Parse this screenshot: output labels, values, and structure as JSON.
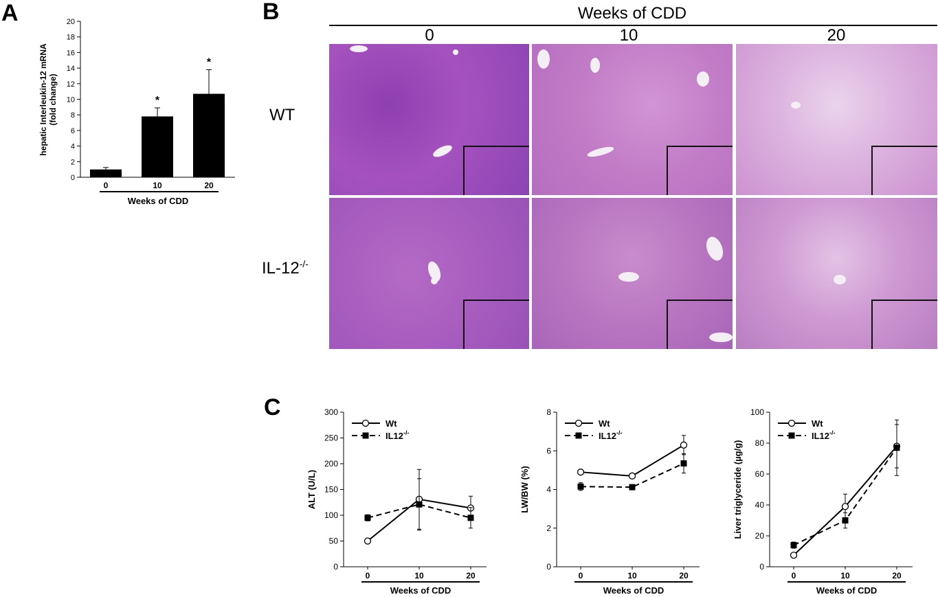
{
  "panels": {
    "a": "A",
    "b": "B",
    "c": "C"
  },
  "histology": {
    "title": "Weeks of CDD",
    "columns": [
      "0",
      "10",
      "20"
    ],
    "rows": [
      {
        "base": "WT",
        "sup": ""
      },
      {
        "base": "IL-12",
        "sup": "-/-"
      }
    ]
  },
  "colors": {
    "bar": "#000000",
    "tissue_base": "#9b4fb8",
    "tissue_pink": "#c783c8",
    "tissue_vessel": "#f3eef6"
  },
  "chart_data": [
    {
      "id": "A",
      "type": "bar",
      "categories": [
        "0",
        "10",
        "20"
      ],
      "values": [
        1.0,
        7.8,
        10.7
      ],
      "errors": [
        0.25,
        1.1,
        3.1
      ],
      "significance": [
        "",
        "*",
        "*"
      ],
      "xlabel": "Weeks of CDD",
      "ylabel_lines": [
        "hepatic Interleukin-12 mRNA",
        "(fold change)"
      ],
      "ylim": [
        0,
        20
      ],
      "yticks": [
        "0",
        "2",
        "4",
        "6",
        "8",
        "10",
        "12",
        "14",
        "16",
        "18",
        "20"
      ],
      "grid": false
    },
    {
      "id": "C1",
      "type": "line",
      "x": [
        "0",
        "10",
        "20"
      ],
      "xlabel": "Weeks of CDD",
      "ylabel": "ALT (U/L)",
      "ylim": [
        0,
        300
      ],
      "yticks": [
        "0",
        "50",
        "100",
        "150",
        "200",
        "250",
        "300"
      ],
      "legend_position": "top-left",
      "series": [
        {
          "name": "Wt",
          "sup": "",
          "values": [
            50,
            131,
            114
          ],
          "errors": [
            5,
            58,
            23
          ],
          "marker": "open-circle",
          "dashed": false
        },
        {
          "name": "IL12",
          "sup": "-/-",
          "values": [
            95,
            121,
            95
          ],
          "errors": [
            6,
            50,
            20
          ],
          "marker": "filled-square",
          "dashed": true
        }
      ]
    },
    {
      "id": "C2",
      "type": "line",
      "x": [
        "0",
        "10",
        "20"
      ],
      "xlabel": "Weeks of CDD",
      "ylabel": "LW/BW (%)",
      "ylim": [
        0,
        8
      ],
      "yticks": [
        "0",
        "2",
        "4",
        "6",
        "8"
      ],
      "legend_position": "top-left",
      "series": [
        {
          "name": "Wt",
          "sup": "",
          "values": [
            4.9,
            4.7,
            6.3
          ],
          "errors": [
            0.1,
            0.1,
            0.5
          ],
          "marker": "open-circle",
          "dashed": false
        },
        {
          "name": "IL12",
          "sup": "-/-",
          "values": [
            4.15,
            4.12,
            5.35
          ],
          "errors": [
            0.2,
            0.1,
            0.5
          ],
          "marker": "filled-square",
          "dashed": true
        }
      ]
    },
    {
      "id": "C3",
      "type": "line",
      "x": [
        "0",
        "10",
        "20"
      ],
      "xlabel": "Weeks of CDD",
      "ylabel": "Liver triglyceride (µg/g)",
      "ylim": [
        0,
        100
      ],
      "yticks": [
        "0",
        "20",
        "40",
        "60",
        "80",
        "100"
      ],
      "legend_position": "top-left",
      "series": [
        {
          "name": "Wt",
          "sup": "",
          "values": [
            7.5,
            39,
            78
          ],
          "errors": [
            1,
            8,
            14
          ],
          "marker": "open-circle",
          "dashed": false
        },
        {
          "name": "IL12",
          "sup": "-/-",
          "values": [
            14,
            30,
            77
          ],
          "errors": [
            2,
            5,
            18
          ],
          "marker": "filled-square",
          "dashed": true
        }
      ]
    }
  ]
}
